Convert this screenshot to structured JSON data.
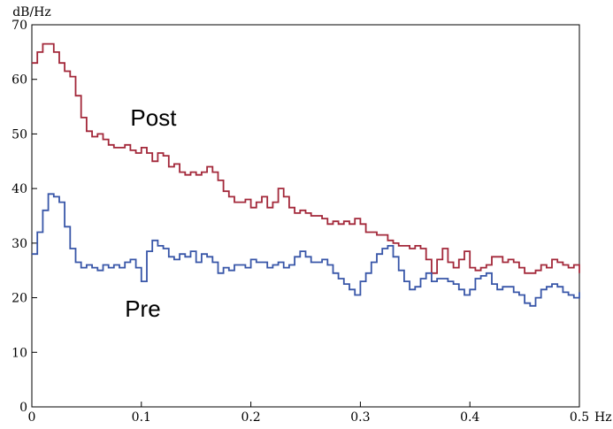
{
  "chart_data": {
    "type": "line",
    "ylabel": "dB/Hz",
    "xlabel_unit": "Hz",
    "xlim": [
      0,
      0.5
    ],
    "ylim": [
      0,
      70
    ],
    "xticks": [
      "0",
      "0.1",
      "0.2",
      "0.3",
      "0.4",
      "0.5"
    ],
    "yticks": [
      "0",
      "10",
      "20",
      "30",
      "40",
      "50",
      "60",
      "70"
    ],
    "grid": false,
    "series": [
      {
        "name": "Post",
        "color": "#a3283a",
        "x": [
          0.0,
          0.005,
          0.01,
          0.015,
          0.02,
          0.025,
          0.03,
          0.035,
          0.04,
          0.045,
          0.05,
          0.055,
          0.06,
          0.065,
          0.07,
          0.075,
          0.08,
          0.085,
          0.09,
          0.095,
          0.1,
          0.105,
          0.11,
          0.115,
          0.12,
          0.125,
          0.13,
          0.135,
          0.14,
          0.145,
          0.15,
          0.155,
          0.16,
          0.165,
          0.17,
          0.175,
          0.18,
          0.185,
          0.19,
          0.195,
          0.2,
          0.205,
          0.21,
          0.215,
          0.22,
          0.225,
          0.23,
          0.235,
          0.24,
          0.245,
          0.25,
          0.255,
          0.26,
          0.265,
          0.27,
          0.275,
          0.28,
          0.285,
          0.29,
          0.295,
          0.3,
          0.305,
          0.31,
          0.315,
          0.32,
          0.325,
          0.33,
          0.335,
          0.34,
          0.345,
          0.35,
          0.355,
          0.36,
          0.365,
          0.37,
          0.375,
          0.38,
          0.385,
          0.39,
          0.395,
          0.4,
          0.405,
          0.41,
          0.415,
          0.42,
          0.425,
          0.43,
          0.435,
          0.44,
          0.445,
          0.45,
          0.455,
          0.46,
          0.465,
          0.47,
          0.475,
          0.48,
          0.485,
          0.49,
          0.495,
          0.5
        ],
        "values": [
          63,
          65,
          66.5,
          66.5,
          65,
          63,
          61.5,
          60.5,
          57,
          53,
          50.5,
          49.5,
          50,
          49,
          48,
          47.5,
          47.5,
          48,
          47,
          46.5,
          47.5,
          46.5,
          45,
          46.5,
          46,
          44,
          44.5,
          43,
          42.5,
          43,
          42.5,
          43,
          44,
          43,
          41.5,
          39.5,
          38.5,
          37.5,
          37.5,
          38,
          36.5,
          37.5,
          38.5,
          36.5,
          37.5,
          40,
          38.5,
          36.5,
          35.5,
          36,
          35.5,
          35,
          35,
          34.5,
          33.5,
          34,
          33.5,
          34,
          33.5,
          34.5,
          33.5,
          32,
          32,
          31.5,
          31.5,
          30.5,
          30,
          29.5,
          29.5,
          29,
          29.5,
          29,
          27,
          24.5,
          27,
          29,
          26.5,
          25.5,
          27,
          28.5,
          25.5,
          25,
          25.5,
          26,
          27.5,
          27.5,
          26.5,
          27,
          26.5,
          25.5,
          24.5,
          24.5,
          25,
          26,
          25.5,
          27,
          26.5,
          26,
          25.5,
          26,
          24.5
        ]
      },
      {
        "name": "Pre",
        "color": "#3856a8",
        "x": [
          0.0,
          0.005,
          0.01,
          0.015,
          0.02,
          0.025,
          0.03,
          0.035,
          0.04,
          0.045,
          0.05,
          0.055,
          0.06,
          0.065,
          0.07,
          0.075,
          0.08,
          0.085,
          0.09,
          0.095,
          0.1,
          0.105,
          0.11,
          0.115,
          0.12,
          0.125,
          0.13,
          0.135,
          0.14,
          0.145,
          0.15,
          0.155,
          0.16,
          0.165,
          0.17,
          0.175,
          0.18,
          0.185,
          0.19,
          0.195,
          0.2,
          0.205,
          0.21,
          0.215,
          0.22,
          0.225,
          0.23,
          0.235,
          0.24,
          0.245,
          0.25,
          0.255,
          0.26,
          0.265,
          0.27,
          0.275,
          0.28,
          0.285,
          0.29,
          0.295,
          0.3,
          0.305,
          0.31,
          0.315,
          0.32,
          0.325,
          0.33,
          0.335,
          0.34,
          0.345,
          0.35,
          0.355,
          0.36,
          0.365,
          0.37,
          0.375,
          0.38,
          0.385,
          0.39,
          0.395,
          0.4,
          0.405,
          0.41,
          0.415,
          0.42,
          0.425,
          0.43,
          0.435,
          0.44,
          0.445,
          0.45,
          0.455,
          0.46,
          0.465,
          0.47,
          0.475,
          0.48,
          0.485,
          0.49,
          0.495,
          0.5
        ],
        "values": [
          28,
          32,
          36,
          39,
          38.5,
          37.5,
          33,
          29,
          26.5,
          25.5,
          26,
          25.5,
          25,
          26,
          25.5,
          26,
          25.5,
          26.5,
          27,
          25.5,
          23,
          28.5,
          30.5,
          29.5,
          29,
          27.5,
          27,
          28,
          27.5,
          28.5,
          26.5,
          28,
          27.5,
          26.5,
          24.5,
          25.5,
          25,
          26,
          26,
          25.5,
          27,
          26.5,
          26.5,
          25.5,
          26,
          26.5,
          25.5,
          26,
          27.5,
          28.5,
          27.5,
          26.5,
          26.5,
          27,
          26,
          24.5,
          23.5,
          22.5,
          21.5,
          20.5,
          23,
          24.5,
          26.5,
          28,
          29,
          29.5,
          27.5,
          25,
          23,
          21.5,
          22,
          23.5,
          24.5,
          23,
          23.5,
          23.5,
          23,
          22.5,
          21.5,
          20.5,
          21.5,
          23.5,
          24,
          24.5,
          22.5,
          21.5,
          22,
          22,
          21,
          20.5,
          19,
          18.5,
          20,
          21.5,
          22,
          22.5,
          22,
          21,
          20.5,
          20,
          21
        ]
      }
    ],
    "annotations": [
      {
        "text": "Post",
        "x": 0.09,
        "y": 51.5
      },
      {
        "text": "Pre",
        "x": 0.085,
        "y": 16.5
      }
    ]
  }
}
